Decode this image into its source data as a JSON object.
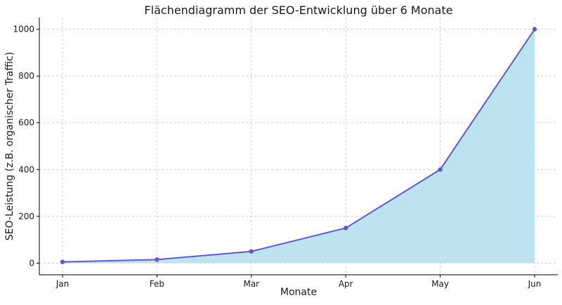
{
  "chart_data": {
    "type": "area",
    "title": "Flächendiagramm der SEO-Entwicklung über 6 Monate",
    "xlabel": "Monate",
    "ylabel": "SEO-Leistung (z.B. organischer Traffic)",
    "categories": [
      "Jan",
      "Feb",
      "Mar",
      "Apr",
      "May",
      "Jun"
    ],
    "series": [
      {
        "values": [
          5,
          15,
          50,
          150,
          400,
          1000
        ]
      }
    ],
    "ylim": [
      -50,
      1050
    ],
    "yticks": [
      0,
      200,
      400,
      600,
      800,
      1000
    ],
    "grid": true,
    "legend": "none",
    "colors": {
      "fill": "#bde3f1",
      "line": "#6a55c8",
      "marker": "#6a55c8"
    }
  }
}
